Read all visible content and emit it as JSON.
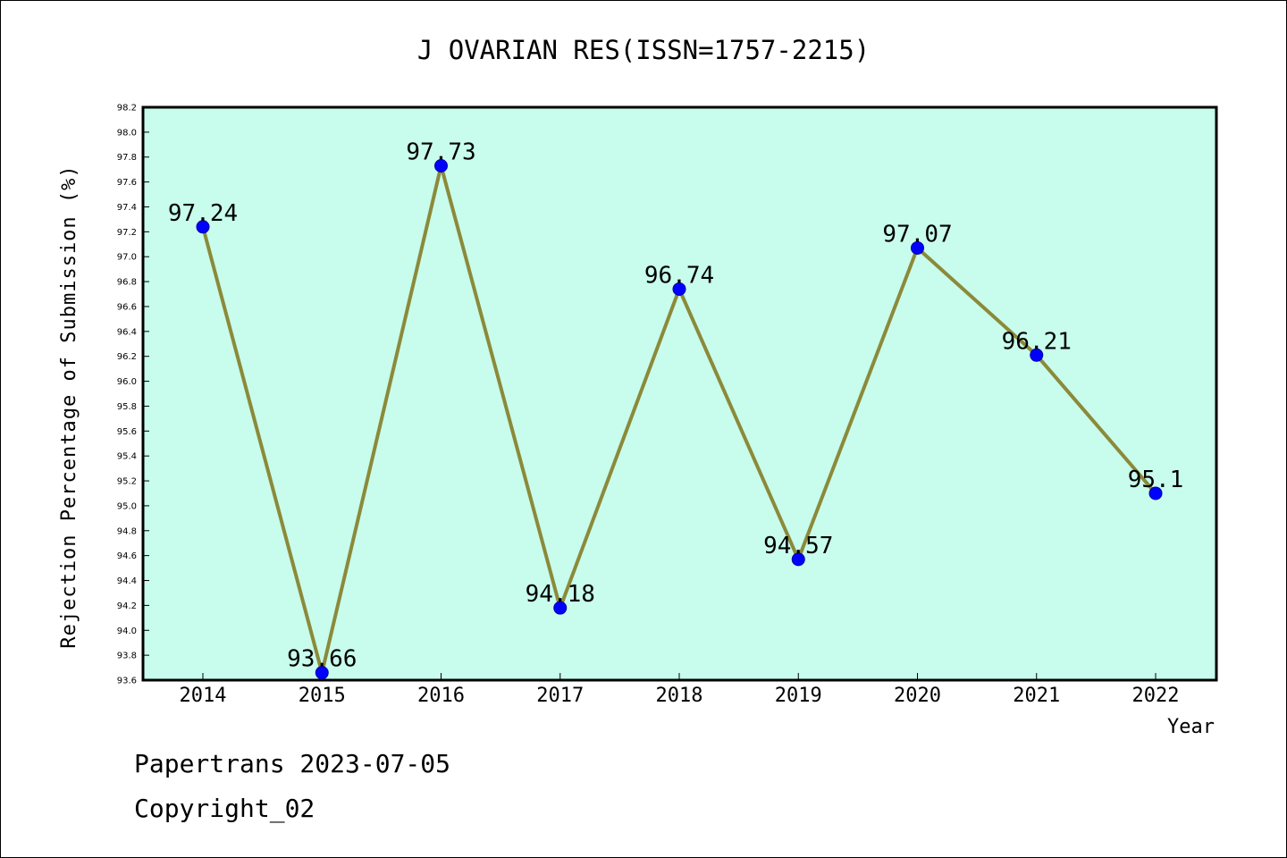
{
  "chart_data": {
    "type": "line",
    "title": "J OVARIAN RES(ISSN=1757-2215)",
    "xlabel": "Year",
    "ylabel": "Rejection Percentage of Submission (%)",
    "categories": [
      "2014",
      "2015",
      "2016",
      "2017",
      "2018",
      "2019",
      "2020",
      "2021",
      "2022"
    ],
    "values": [
      97.24,
      93.66,
      97.73,
      94.18,
      96.74,
      94.57,
      97.07,
      96.21,
      95.1
    ],
    "data_labels": [
      "97.24",
      "93.66",
      "97.73",
      "94.18",
      "96.74",
      "94.57",
      "97.07",
      "96.21",
      "95.1"
    ],
    "ylim": [
      93.6,
      98.2
    ],
    "yticks": [
      "93.6",
      "93.8",
      "94.0",
      "94.2",
      "94.4",
      "94.6",
      "94.8",
      "95.0",
      "95.2",
      "95.4",
      "95.6",
      "95.8",
      "96.0",
      "96.2",
      "96.4",
      "96.6",
      "96.8",
      "97.0",
      "97.2",
      "97.4",
      "97.6",
      "97.8",
      "98.0",
      "98.2"
    ],
    "grid": false,
    "legend": "none",
    "colors": {
      "plot_background": "#c8fcec",
      "line": "#8b8a3a",
      "marker": "#0000ff"
    }
  },
  "footer": {
    "line1": "Papertrans 2023-07-05",
    "line2": "Copyright_02"
  }
}
